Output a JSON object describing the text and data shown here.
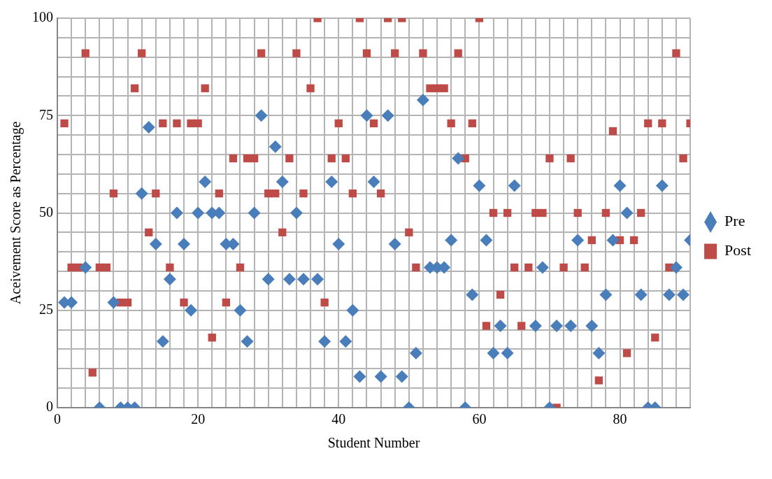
{
  "chart_data": {
    "type": "scatter",
    "xlabel": "Student Number",
    "ylabel": "Aceivement Score as Percentage",
    "x": [
      1,
      2,
      3,
      4,
      5,
      6,
      7,
      8,
      9,
      10,
      11,
      12,
      13,
      14,
      15,
      16,
      17,
      18,
      19,
      20,
      21,
      22,
      23,
      24,
      25,
      26,
      27,
      28,
      29,
      30,
      31,
      32,
      33,
      34,
      35,
      36,
      37,
      38,
      39,
      40,
      41,
      42,
      43,
      44,
      45,
      46,
      47,
      48,
      49,
      50,
      51,
      52,
      53,
      54,
      55,
      56,
      57,
      58,
      59,
      60,
      61,
      62,
      63,
      64,
      65,
      66,
      67,
      68,
      69,
      70,
      71,
      72,
      73,
      74,
      75,
      76,
      77,
      78,
      79,
      80,
      81,
      82,
      83,
      84,
      85,
      86,
      87,
      88,
      89,
      90
    ],
    "series": [
      {
        "name": "Pre",
        "color": "#4a7ebb",
        "marker": "diamond",
        "values": [
          27,
          27,
          null,
          36,
          null,
          0,
          null,
          27,
          0,
          0,
          0,
          55,
          72,
          42,
          17,
          33,
          50,
          42,
          25,
          50,
          58,
          50,
          50,
          42,
          42,
          25,
          17,
          50,
          75,
          33,
          67,
          58,
          33,
          50,
          33,
          null,
          33,
          17,
          58,
          42,
          17,
          25,
          8,
          75,
          58,
          8,
          75,
          42,
          8,
          0,
          14,
          79,
          36,
          36,
          36,
          43,
          64,
          0,
          29,
          57,
          43,
          14,
          21,
          14,
          57,
          null,
          null,
          21,
          36,
          0,
          21,
          null,
          21,
          43,
          null,
          21,
          14,
          29,
          43,
          57,
          50,
          null,
          29,
          0,
          0,
          57,
          29,
          36,
          29,
          43
        ]
      },
      {
        "name": "Post",
        "color": "#be4b48",
        "marker": "square",
        "values": [
          73,
          36,
          36,
          91,
          9,
          36,
          36,
          55,
          27,
          27,
          82,
          91,
          45,
          55,
          73,
          36,
          73,
          27,
          73,
          73,
          82,
          18,
          55,
          27,
          64,
          36,
          64,
          64,
          91,
          55,
          55,
          45,
          64,
          91,
          55,
          82,
          100,
          27,
          64,
          73,
          64,
          55,
          100,
          91,
          73,
          55,
          100,
          91,
          100,
          45,
          36,
          91,
          82,
          82,
          82,
          73,
          91,
          64,
          73,
          100,
          21,
          50,
          29,
          50,
          36,
          21,
          36,
          50,
          50,
          64,
          0,
          36,
          64,
          50,
          36,
          43,
          7,
          50,
          71,
          43,
          14,
          43,
          50,
          73,
          18,
          73,
          36,
          91,
          64,
          73
        ]
      }
    ],
    "xlim": [
      0,
      90
    ],
    "xticks": [
      0,
      {
        "value": 2,
        "label": null
      },
      {
        "value": 4,
        "label": null
      },
      {
        "value": 6,
        "label": null
      },
      {
        "value": 8,
        "label": null
      },
      {
        "value": 10,
        "label": null
      },
      {
        "value": 12,
        "label": null
      },
      {
        "value": 14,
        "label": null
      },
      {
        "value": 16,
        "label": null
      },
      {
        "value": 18,
        "label": null
      },
      20,
      {
        "value": 22,
        "label": null
      },
      {
        "value": 24,
        "label": null
      },
      {
        "value": 26,
        "label": null
      },
      {
        "value": 28,
        "label": null
      },
      {
        "value": 30,
        "label": null
      },
      {
        "value": 32,
        "label": null
      },
      {
        "value": 34,
        "label": null
      },
      {
        "value": 36,
        "label": null
      },
      {
        "value": 38,
        "label": null
      },
      40,
      {
        "value": 42,
        "label": null
      },
      {
        "value": 44,
        "label": null
      },
      {
        "value": 46,
        "label": null
      },
      {
        "value": 48,
        "label": null
      },
      {
        "value": 50,
        "label": null
      },
      {
        "value": 52,
        "label": null
      },
      {
        "value": 54,
        "label": null
      },
      {
        "value": 56,
        "label": null
      },
      {
        "value": 58,
        "label": null
      },
      60,
      {
        "value": 62,
        "label": null
      },
      {
        "value": 64,
        "label": null
      },
      {
        "value": 66,
        "label": null
      },
      {
        "value": 68,
        "label": null
      },
      {
        "value": 70,
        "label": null
      },
      {
        "value": 72,
        "label": null
      },
      {
        "value": 74,
        "label": null
      },
      {
        "value": 76,
        "label": null
      },
      {
        "value": 78,
        "label": null
      },
      80,
      {
        "value": 82,
        "label": null
      },
      {
        "value": 84,
        "label": null
      },
      {
        "value": 86,
        "label": null
      },
      {
        "value": 88,
        "label": null
      },
      {
        "value": 90,
        "label": null
      }
    ],
    "ylim": [
      0,
      100
    ],
    "yticks": [
      0,
      {
        "value": 5,
        "label": null
      },
      {
        "value": 10,
        "label": null
      },
      {
        "value": 15,
        "label": null
      },
      {
        "value": 20,
        "label": null
      },
      25,
      {
        "value": 30,
        "label": null
      },
      {
        "value": 35,
        "label": null
      },
      {
        "value": 40,
        "label": null
      },
      {
        "value": 45,
        "label": null
      },
      50,
      {
        "value": 55,
        "label": null
      },
      {
        "value": 60,
        "label": null
      },
      {
        "value": 65,
        "label": null
      },
      {
        "value": 70,
        "label": null
      },
      75,
      {
        "value": 80,
        "label": null
      },
      {
        "value": 85,
        "label": null
      },
      {
        "value": 90,
        "label": null
      },
      {
        "value": 95,
        "label": null
      },
      100
    ],
    "grid": true,
    "legend": "right"
  }
}
